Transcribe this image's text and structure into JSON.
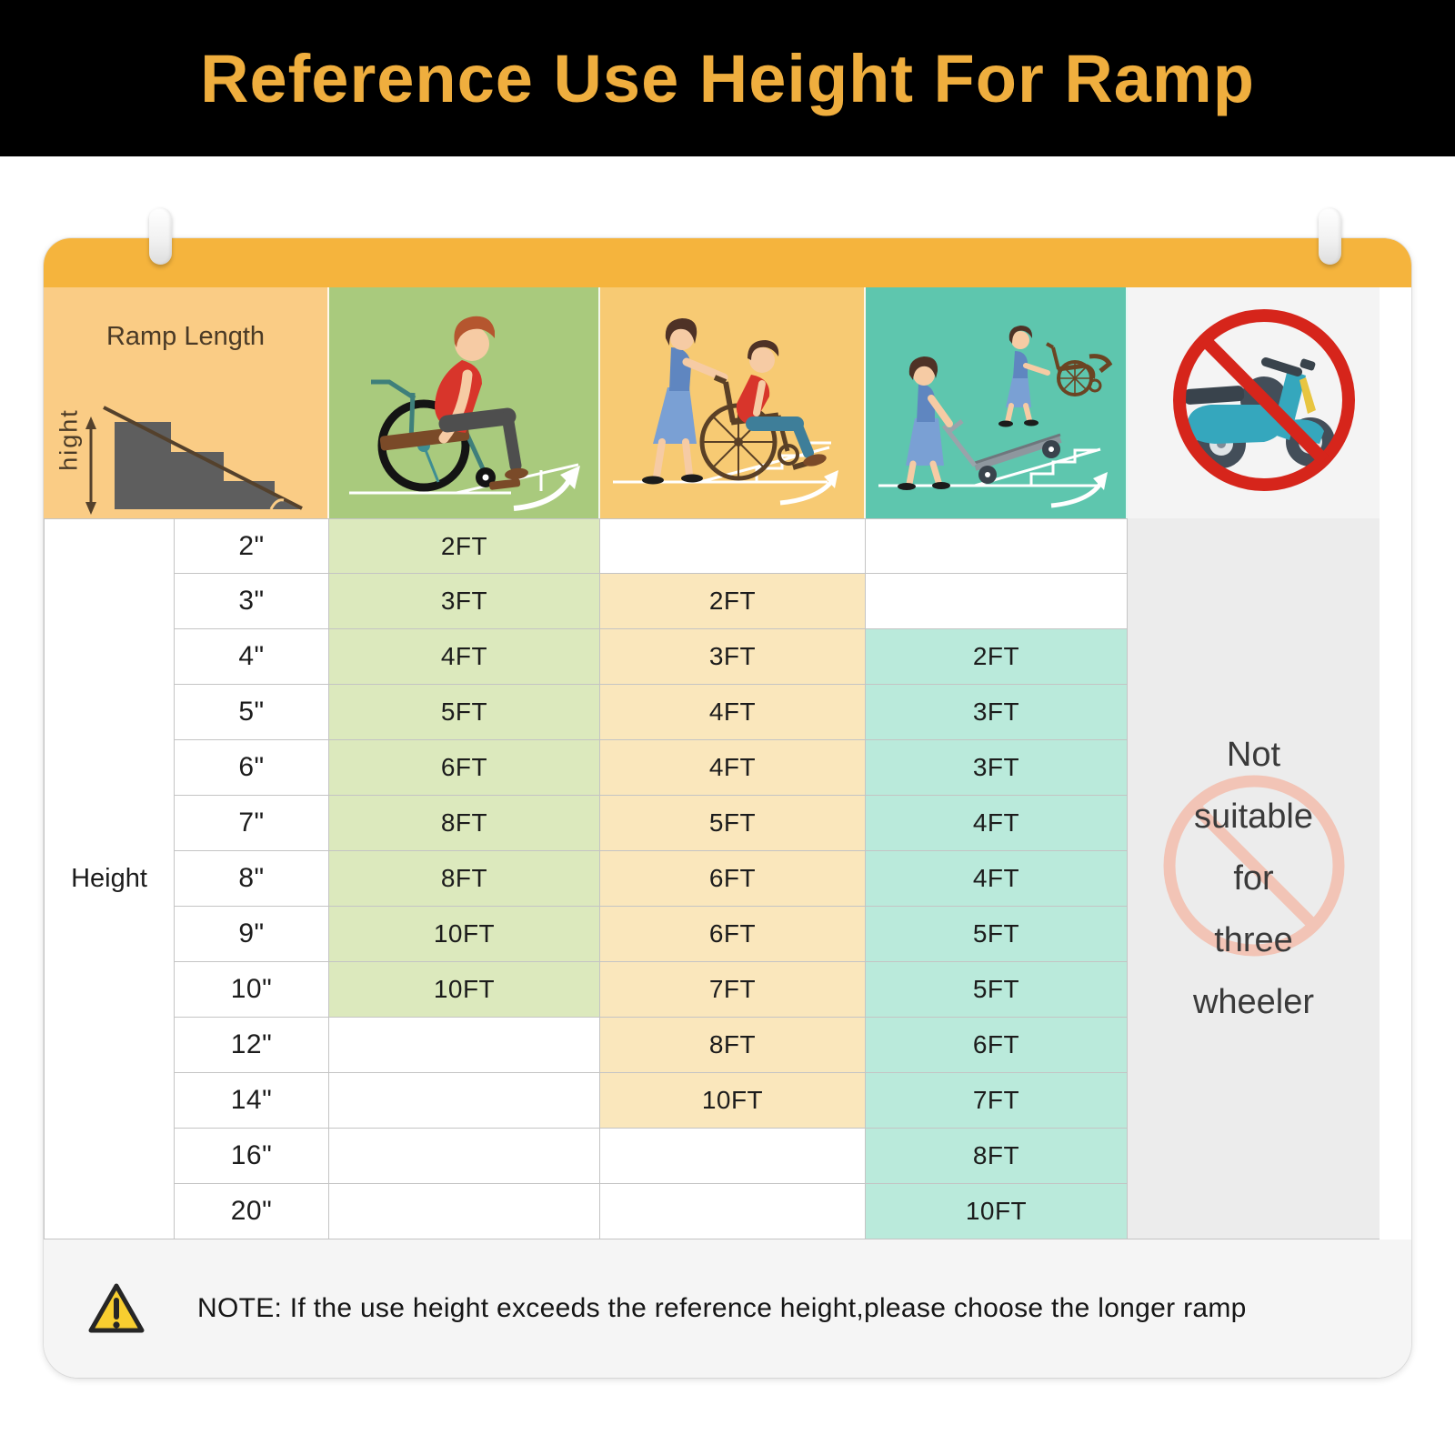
{
  "title": "Reference Use Height For Ramp",
  "header": {
    "ramp_length_label": "Ramp Length",
    "height_axis_label": "hight",
    "column_icons": [
      "ramp-diagram",
      "wheelchair-self-icon",
      "wheelchair-assisted-icon",
      "hand-truck-icon",
      "no-scooter-icon"
    ]
  },
  "table": {
    "row_header_label": "Height"
  },
  "not_suitable": {
    "lines": [
      "Not",
      "suitable",
      "for",
      "three",
      "wheeler"
    ]
  },
  "note": {
    "icon": "warning-triangle-icon",
    "text": "NOTE: If the use height exceeds the reference height,please choose the longer ramp"
  },
  "colors": {
    "title_yellow": "#EFAE3E",
    "bar_orange": "#F5B43D",
    "header_peach": "#FACC85",
    "header_green": "#A9CA7D",
    "cell_green": "#DCE9BD",
    "header_orange": "#F7CA73",
    "cell_orange": "#FAE7BC",
    "header_teal": "#5EC6AE",
    "cell_teal": "#BAEADB",
    "prohibit_red": "#D6251B",
    "watermark_pink": "#F2C4B6",
    "warning_yellow": "#F8CE30"
  },
  "chart_data": {
    "type": "table",
    "title": "Reference Use Height For Ramp",
    "row_header": "Height",
    "column_header": "Ramp Length",
    "heights": [
      "2\"",
      "3\"",
      "4\"",
      "5\"",
      "6\"",
      "7\"",
      "8\"",
      "9\"",
      "10\"",
      "12\"",
      "14\"",
      "16\"",
      "20\""
    ],
    "series": [
      {
        "name": "wheelchair-self-propelled",
        "values": [
          "2FT",
          "3FT",
          "4FT",
          "5FT",
          "6FT",
          "8FT",
          "8FT",
          "10FT",
          "10FT",
          "",
          "",
          "",
          ""
        ]
      },
      {
        "name": "wheelchair-assisted",
        "values": [
          "",
          "2FT",
          "3FT",
          "4FT",
          "4FT",
          "5FT",
          "6FT",
          "6FT",
          "7FT",
          "8FT",
          "10FT",
          "",
          ""
        ]
      },
      {
        "name": "hand-truck",
        "values": [
          "",
          "",
          "2FT",
          "3FT",
          "3FT",
          "4FT",
          "4FT",
          "5FT",
          "5FT",
          "6FT",
          "7FT",
          "8FT",
          "10FT"
        ]
      },
      {
        "name": "three-wheeler",
        "values": "Not suitable for three wheeler"
      }
    ]
  }
}
